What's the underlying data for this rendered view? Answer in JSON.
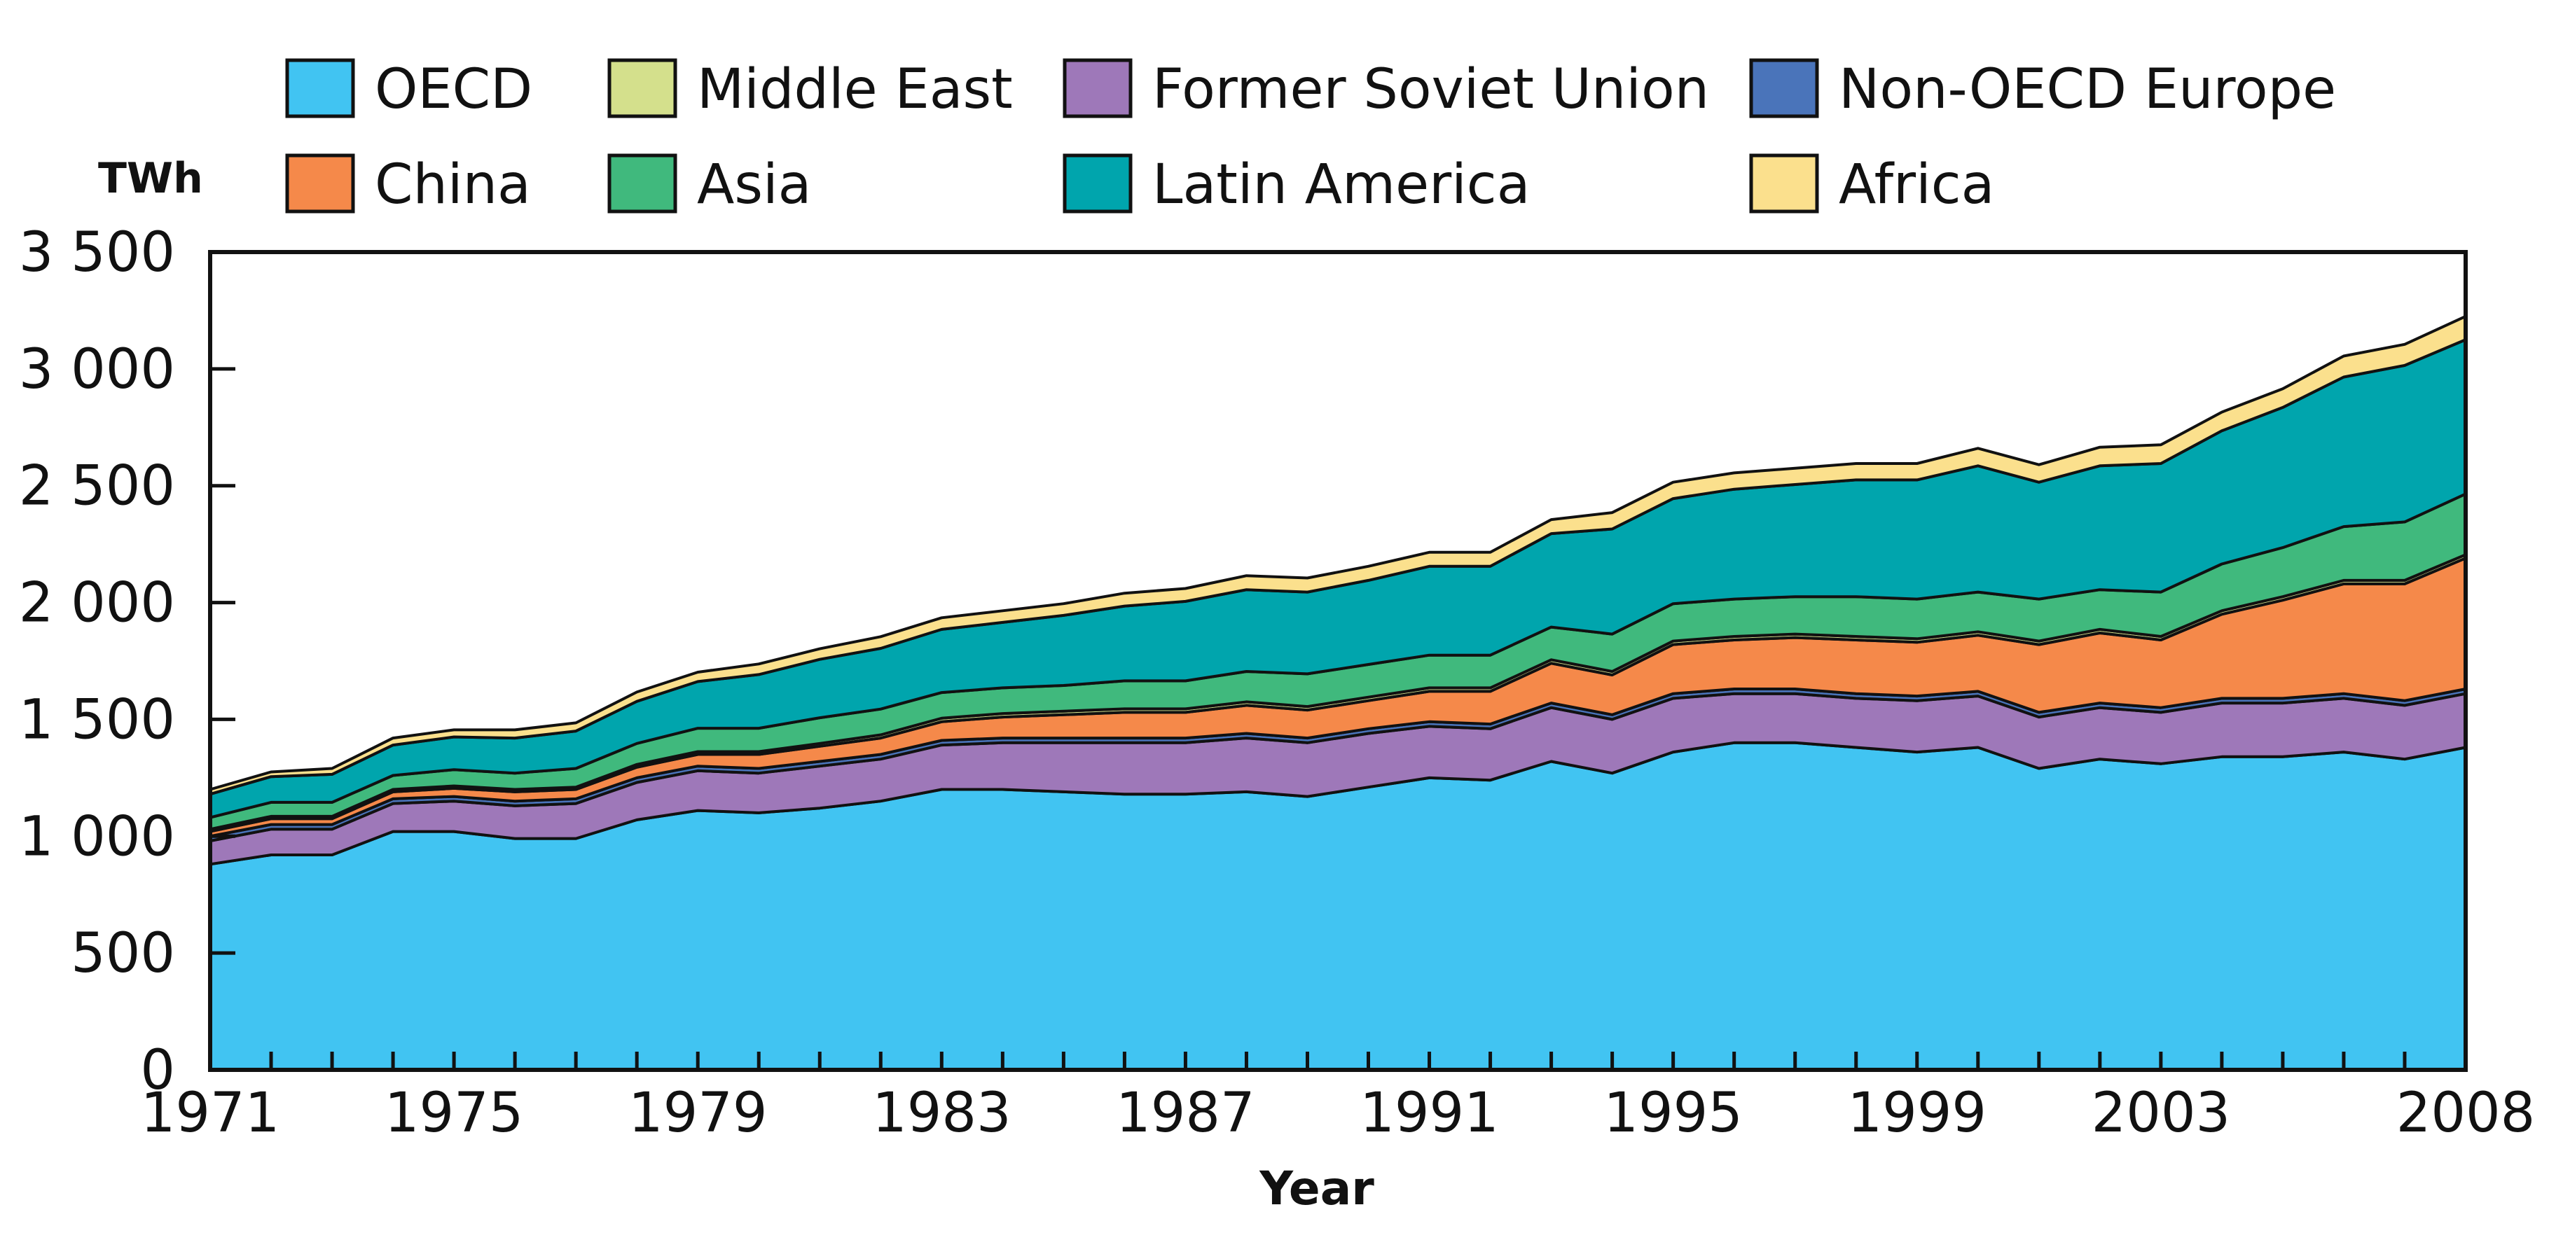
{
  "chart_data": {
    "type": "area",
    "stacked": true,
    "unit": "TWh",
    "xlabel": "Year",
    "ylabel": "",
    "title": "",
    "ylim": [
      0,
      3500
    ],
    "xlim": [
      1971,
      2008
    ],
    "grid": false,
    "legend_position": "top",
    "y_ticks": [
      0,
      500,
      1000,
      1500,
      2000,
      2500,
      3000,
      3500
    ],
    "y_tick_labels": [
      "0",
      "500",
      "1 000",
      "1 500",
      "2 000",
      "2 500",
      "3 000",
      "3 500"
    ],
    "x_ticks": [
      1971,
      1975,
      1979,
      1983,
      1987,
      1991,
      1995,
      1999,
      2003,
      2008
    ],
    "x_tick_labels": [
      "1971",
      "1975",
      "1979",
      "1983",
      "1987",
      "1991",
      "1995",
      "1999",
      "2003",
      "2008"
    ],
    "x": [
      1971,
      1972,
      1973,
      1974,
      1975,
      1976,
      1977,
      1978,
      1979,
      1980,
      1981,
      1982,
      1983,
      1984,
      1985,
      1986,
      1987,
      1988,
      1989,
      1990,
      1991,
      1992,
      1993,
      1994,
      1995,
      1996,
      1997,
      1998,
      1999,
      2000,
      2001,
      2002,
      2003,
      2004,
      2005,
      2006,
      2007,
      2008
    ],
    "series": [
      {
        "name": "OECD",
        "color": "#41c4f2",
        "values": [
          880,
          920,
          920,
          1020,
          1020,
          990,
          990,
          1070,
          1110,
          1100,
          1120,
          1150,
          1200,
          1200,
          1190,
          1180,
          1180,
          1190,
          1170,
          1210,
          1250,
          1240,
          1320,
          1270,
          1360,
          1400,
          1400,
          1380,
          1360,
          1380,
          1290,
          1330,
          1310,
          1340,
          1340,
          1360,
          1330,
          1380
        ]
      },
      {
        "name": "Former Soviet Union",
        "color": "#9e78b9",
        "values": [
          100,
          110,
          110,
          120,
          130,
          140,
          150,
          160,
          170,
          170,
          180,
          180,
          190,
          200,
          210,
          220,
          220,
          230,
          230,
          230,
          220,
          220,
          230,
          230,
          230,
          210,
          210,
          210,
          220,
          220,
          220,
          220,
          220,
          230,
          230,
          230,
          230,
          230
        ]
      },
      {
        "name": "Non-OECD Europe",
        "color": "#4a74ba",
        "values": [
          20,
          20,
          20,
          20,
          20,
          20,
          20,
          20,
          20,
          20,
          20,
          20,
          20,
          20,
          20,
          20,
          20,
          20,
          20,
          20,
          20,
          20,
          20,
          20,
          20,
          20,
          20,
          20,
          20,
          20,
          20,
          20,
          20,
          20,
          20,
          20,
          20,
          20
        ]
      },
      {
        "name": "China",
        "color": "#f5894a",
        "values": [
          20,
          25,
          25,
          30,
          35,
          40,
          40,
          45,
          50,
          60,
          65,
          70,
          80,
          90,
          100,
          110,
          110,
          120,
          120,
          120,
          130,
          140,
          170,
          170,
          210,
          210,
          220,
          230,
          230,
          240,
          290,
          300,
          290,
          360,
          420,
          470,
          500,
          560
        ]
      },
      {
        "name": "Middle East",
        "color": "#d4e08c",
        "values": [
          10,
          10,
          10,
          10,
          10,
          10,
          10,
          12,
          12,
          12,
          12,
          14,
          15,
          15,
          15,
          15,
          15,
          15,
          15,
          15,
          15,
          15,
          15,
          15,
          15,
          15,
          15,
          15,
          15,
          15,
          15,
          15,
          15,
          15,
          15,
          15,
          15,
          15
        ]
      },
      {
        "name": "Asia",
        "color": "#40b97d",
        "values": [
          50,
          60,
          60,
          60,
          70,
          70,
          80,
          90,
          100,
          100,
          110,
          110,
          110,
          110,
          110,
          120,
          120,
          130,
          140,
          140,
          140,
          140,
          140,
          160,
          160,
          160,
          160,
          170,
          170,
          170,
          180,
          170,
          190,
          200,
          210,
          230,
          250,
          260
        ]
      },
      {
        "name": "Latin America",
        "color": "#00a5ad",
        "values": [
          100,
          110,
          120,
          130,
          140,
          150,
          160,
          180,
          200,
          230,
          250,
          260,
          270,
          280,
          300,
          320,
          340,
          350,
          350,
          360,
          380,
          380,
          400,
          450,
          450,
          470,
          480,
          500,
          510,
          540,
          500,
          530,
          550,
          570,
          600,
          640,
          670,
          660
        ]
      },
      {
        "name": "Africa",
        "color": "#fbe08d",
        "values": [
          20,
          20,
          25,
          30,
          30,
          35,
          35,
          40,
          40,
          45,
          45,
          50,
          50,
          50,
          50,
          55,
          55,
          60,
          60,
          60,
          60,
          60,
          60,
          70,
          70,
          70,
          70,
          70,
          70,
          75,
          75,
          80,
          80,
          80,
          80,
          90,
          90,
          100
        ]
      }
    ]
  },
  "legend": {
    "order": [
      {
        "series": 0,
        "row": 0,
        "col": 0
      },
      {
        "series": 3,
        "row": 1,
        "col": 0
      },
      {
        "series": 4,
        "row": 0,
        "col": 1
      },
      {
        "series": 5,
        "row": 1,
        "col": 1
      },
      {
        "series": 1,
        "row": 0,
        "col": 2
      },
      {
        "series": 6,
        "row": 1,
        "col": 2
      },
      {
        "series": 2,
        "row": 0,
        "col": 3
      },
      {
        "series": 7,
        "row": 1,
        "col": 3
      }
    ]
  }
}
